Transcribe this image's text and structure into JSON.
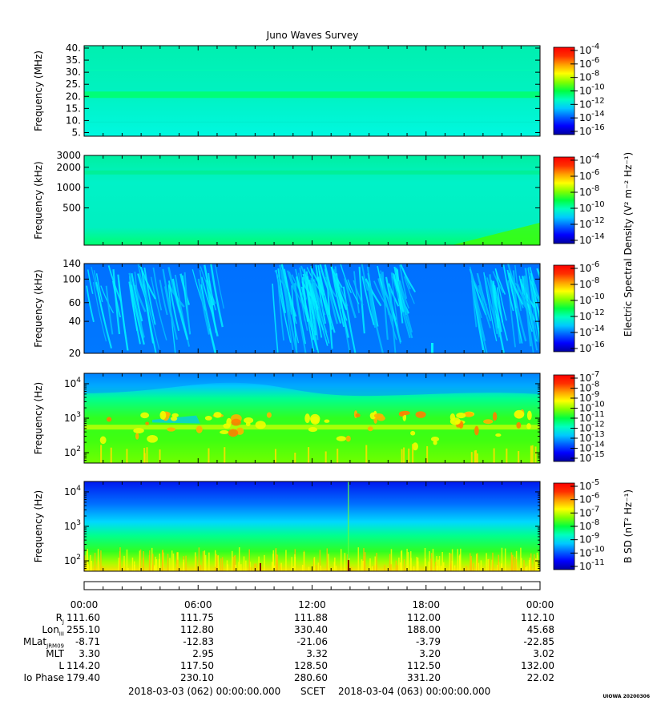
{
  "title": "Juno Waves Survey",
  "colors": {
    "cmap": [
      "#0000a0",
      "#0000ff",
      "#0060ff",
      "#00c8ff",
      "#00ffc0",
      "#00ff40",
      "#80ff00",
      "#ffff00",
      "#ffa000",
      "#ff3000",
      "#ff0000"
    ]
  },
  "chart_data": [
    {
      "type": "heatmap",
      "name": "panel-1",
      "ylabel": "Frequency (MHz)",
      "yscale": "linear",
      "ylim": [
        3.5,
        41
      ],
      "ytick_values": [
        5,
        10,
        15,
        20,
        25,
        30,
        35,
        40
      ],
      "ytick_labels": [
        "5.",
        "10.",
        "15.",
        "20.",
        "25.",
        "30.",
        "35.",
        "40."
      ],
      "colorbar_ticks": [
        [
          "10",
          "-4"
        ],
        [
          "10",
          "-6"
        ],
        [
          "10",
          "-8"
        ],
        [
          "10",
          "-10"
        ],
        [
          "10",
          "-12"
        ],
        [
          "10",
          "-14"
        ],
        [
          "10",
          "-16"
        ]
      ],
      "colorbar_label": ""
    },
    {
      "type": "heatmap",
      "name": "panel-2",
      "ylabel": "Frequency (kHz)",
      "yscale": "log",
      "ylim": [
        140,
        3000
      ],
      "ytick_values": [
        500,
        1000,
        2000,
        3000
      ],
      "ytick_labels": [
        "500",
        "1000",
        "2000",
        "3000"
      ],
      "colorbar_ticks": [
        [
          "10",
          "-4"
        ],
        [
          "10",
          "-6"
        ],
        [
          "10",
          "-8"
        ],
        [
          "10",
          "-10"
        ],
        [
          "10",
          "-12"
        ],
        [
          "10",
          "-14"
        ]
      ],
      "colorbar_label": "Electric Spectral Density (V² m⁻² Hz⁻¹)"
    },
    {
      "type": "heatmap",
      "name": "panel-3",
      "ylabel": "Frequency (kHz)",
      "yscale": "log",
      "ylim": [
        20,
        140
      ],
      "ytick_values": [
        20,
        40,
        60,
        100,
        140
      ],
      "ytick_labels": [
        "20",
        "40",
        "60",
        "100",
        "140"
      ],
      "colorbar_ticks": [
        [
          "10",
          "-6"
        ],
        [
          "10",
          "-8"
        ],
        [
          "10",
          "-10"
        ],
        [
          "10",
          "-12"
        ],
        [
          "10",
          "-14"
        ],
        [
          "10",
          "-16"
        ]
      ],
      "colorbar_label": ""
    },
    {
      "type": "heatmap",
      "name": "panel-4",
      "ylabel": "Frequency (Hz)",
      "yscale": "log",
      "ylim": [
        50,
        20000
      ],
      "ytick_values": [
        100,
        1000,
        10000
      ],
      "ytick_labels": [
        [
          "10",
          "2"
        ],
        [
          "10",
          "3"
        ],
        [
          "10",
          "4"
        ]
      ],
      "colorbar_ticks": [
        [
          "10",
          "-7"
        ],
        [
          "10",
          "-8"
        ],
        [
          "10",
          "-9"
        ],
        [
          "10",
          "-10"
        ],
        [
          "10",
          "-11"
        ],
        [
          "10",
          "-12"
        ],
        [
          "10",
          "-13"
        ],
        [
          "10",
          "-14"
        ],
        [
          "10",
          "-15"
        ]
      ],
      "colorbar_label": ""
    },
    {
      "type": "heatmap",
      "name": "panel-5",
      "ylabel": "Frequency (Hz)",
      "yscale": "log",
      "ylim": [
        50,
        20000
      ],
      "ytick_values": [
        100,
        1000,
        10000
      ],
      "ytick_labels": [
        [
          "10",
          "2"
        ],
        [
          "10",
          "3"
        ],
        [
          "10",
          "4"
        ]
      ],
      "colorbar_ticks": [
        [
          "10",
          "-5"
        ],
        [
          "10",
          "-6"
        ],
        [
          "10",
          "-7"
        ],
        [
          "10",
          "-8"
        ],
        [
          "10",
          "-9"
        ],
        [
          "10",
          "-10"
        ],
        [
          "10",
          "-11"
        ]
      ],
      "colorbar_label": "B SD (nT² Hz⁻¹)"
    }
  ],
  "time_axis": {
    "labels": [
      "00:00",
      "06:00",
      "12:00",
      "18:00",
      "00:00"
    ]
  },
  "ephemeris": [
    {
      "label": "R",
      "sub": "J",
      "values": [
        "111.60",
        "111.75",
        "111.88",
        "112.00",
        "112.10"
      ]
    },
    {
      "label": "Lon",
      "sub": "III",
      "values": [
        "255.10",
        "112.80",
        "330.40",
        "188.00",
        "45.68"
      ]
    },
    {
      "label": "MLat",
      "sub": "JRM09",
      "values": [
        "-8.71",
        "-12.83",
        "-21.06",
        "-3.79",
        "-22.85"
      ]
    },
    {
      "label": "MLT",
      "sub": "",
      "values": [
        "3.30",
        "2.95",
        "3.32",
        "3.20",
        "3.02"
      ]
    },
    {
      "label": "L",
      "sub": "",
      "values": [
        "114.20",
        "117.50",
        "128.50",
        "112.50",
        "132.00"
      ]
    },
    {
      "label": "Io Phase",
      "sub": "",
      "values": [
        "179.40",
        "230.10",
        "280.60",
        "331.20",
        "22.02"
      ]
    }
  ],
  "footer": {
    "start": "2018-03-03 (062) 00:00:00.000",
    "mid": "SCET",
    "end": "2018-03-04 (063) 00:00:00.000"
  },
  "stamp": "UIOWA 20200306"
}
